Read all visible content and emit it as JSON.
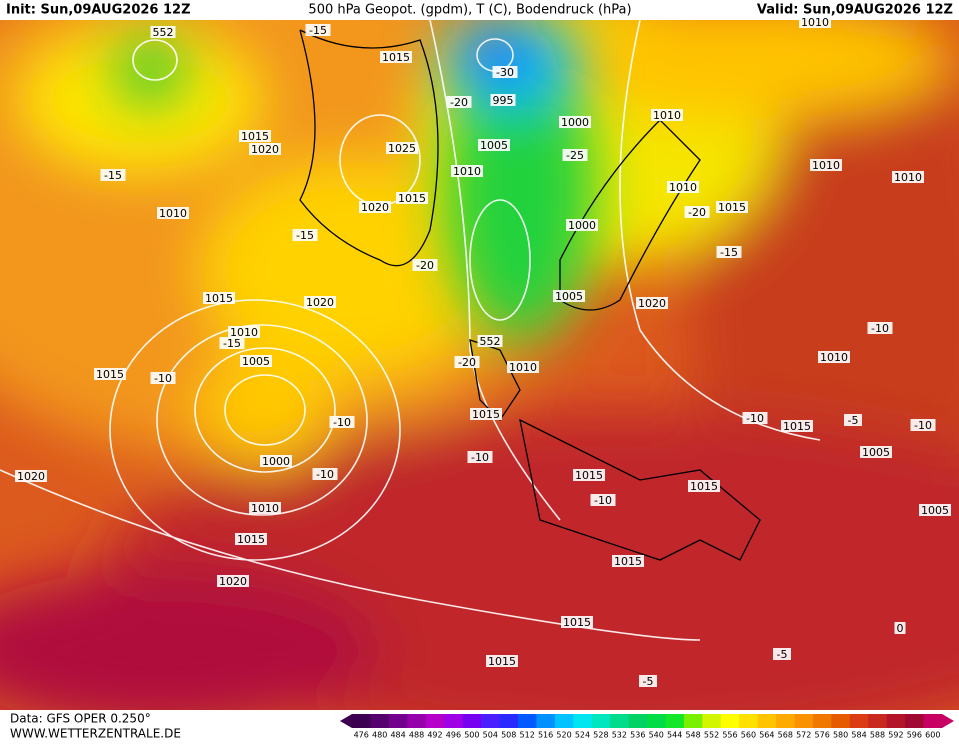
{
  "header": {
    "init": "Init: Sun,09AUG2026 12Z",
    "title": "500 hPa Geopot. (gpdm), T (C), Bodendruck (hPa)",
    "valid": "Valid: Sun,09AUG2026 12Z"
  },
  "map": {
    "isobar_labels": [
      "1015",
      "-15",
      "552",
      "1015",
      "1020",
      "1025",
      "-15",
      "1010",
      "1020",
      "1015",
      "-15",
      "-20",
      "1015",
      "1020",
      "1010",
      "-15",
      "1005",
      "1015",
      "-10",
      "-10",
      "1000",
      "-10",
      "1010",
      "1015",
      "1020",
      "1020",
      "-30",
      "995",
      "1000",
      "1005",
      "1010",
      "-25",
      "1010",
      "1010",
      "-20",
      "1015",
      "1010",
      "1010",
      "1000",
      "-15",
      "1005",
      "1020",
      "552",
      "-20",
      "1010",
      "1015",
      "-10",
      "1010",
      "-10",
      "-10",
      "1015",
      "-5",
      "1005",
      "1015",
      "-10",
      "1015",
      "1005",
      "1015",
      "1015",
      "0",
      "-5",
      "1015",
      "-5",
      "1010",
      "-20",
      "-10"
    ]
  },
  "footer": {
    "data": "Data: GFS OPER 0.250°",
    "site": "WWW.WETTERZENTRALE.DE"
  },
  "colorbar": {
    "levels": [
      476,
      480,
      484,
      488,
      492,
      496,
      500,
      504,
      508,
      512,
      516,
      520,
      524,
      528,
      532,
      536,
      540,
      544,
      548,
      552,
      556,
      560,
      564,
      568,
      572,
      576,
      580,
      584,
      588,
      592,
      596,
      600
    ],
    "colors": [
      "#3c0050",
      "#56006e",
      "#73008c",
      "#9600aa",
      "#b400c8",
      "#a000e6",
      "#7800f0",
      "#4b1eff",
      "#2828ff",
      "#005aff",
      "#0091ff",
      "#00c3ff",
      "#00e6f0",
      "#00e6be",
      "#00dc8c",
      "#00d264",
      "#00dc46",
      "#14e628",
      "#78f000",
      "#d2f500",
      "#ffff00",
      "#ffe100",
      "#ffc300",
      "#ffaa00",
      "#fa9100",
      "#f07800",
      "#e65a00",
      "#dc3c14",
      "#c8281e",
      "#b41428",
      "#a00a32",
      "#c80064"
    ]
  }
}
